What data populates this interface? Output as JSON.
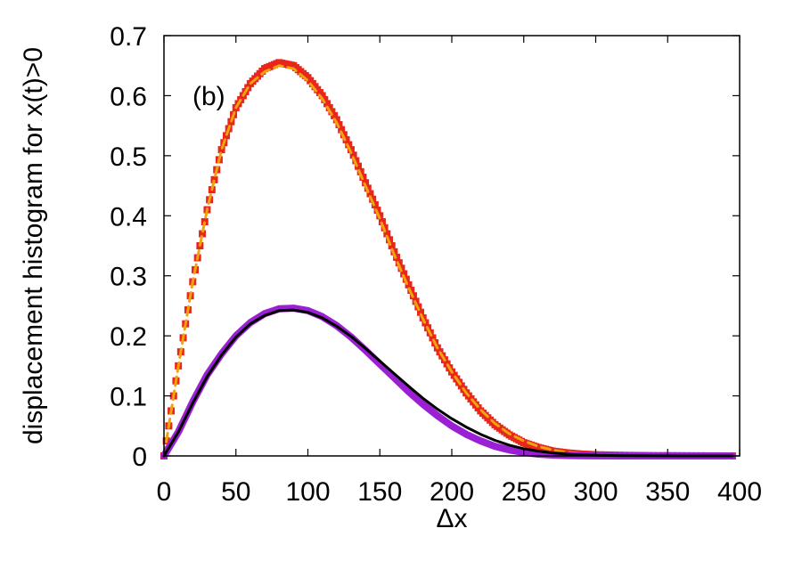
{
  "chart_data": {
    "type": "scatter",
    "title": "",
    "xlabel": "Δx",
    "ylabel": "displacement histogram for x(t)>0",
    "xlim": [
      0,
      400
    ],
    "ylim": [
      0,
      0.7
    ],
    "xticks": [
      "0",
      "50",
      "100",
      "150",
      "200",
      "250",
      "300",
      "350",
      "400"
    ],
    "yticks": [
      "0",
      "0.1",
      "0.2",
      "0.3",
      "0.4",
      "0.5",
      "0.6",
      "0.7"
    ],
    "grid": false,
    "legend": "none",
    "annotation": "(b)",
    "series": [
      {
        "style": "markers",
        "color": "#e8261c",
        "x": [
          0,
          10,
          20,
          30,
          40,
          50,
          60,
          70,
          80,
          90,
          100,
          110,
          120,
          130,
          140,
          150,
          160,
          170,
          180,
          190,
          200,
          210,
          220,
          230,
          240,
          250,
          260,
          270,
          280,
          290,
          300,
          320,
          340,
          360,
          380,
          395
        ],
        "y": [
          0,
          0.15,
          0.29,
          0.41,
          0.51,
          0.58,
          0.62,
          0.645,
          0.655,
          0.65,
          0.63,
          0.6,
          0.56,
          0.51,
          0.455,
          0.4,
          0.34,
          0.285,
          0.23,
          0.18,
          0.14,
          0.105,
          0.075,
          0.052,
          0.035,
          0.022,
          0.014,
          0.008,
          0.005,
          0.003,
          0.002,
          0.001,
          0.0005,
          0.0003,
          0.0001,
          0
        ]
      },
      {
        "style": "dashed-line",
        "color": "#f0a30a",
        "x": [
          0,
          10,
          20,
          30,
          40,
          50,
          60,
          70,
          80,
          90,
          100,
          110,
          120,
          130,
          140,
          150,
          160,
          170,
          180,
          190,
          200,
          210,
          220,
          230,
          240,
          250,
          260,
          270,
          280,
          290,
          300,
          320,
          340,
          360,
          380,
          395
        ],
        "y": [
          0,
          0.15,
          0.29,
          0.41,
          0.51,
          0.58,
          0.62,
          0.64,
          0.65,
          0.645,
          0.625,
          0.595,
          0.555,
          0.505,
          0.45,
          0.395,
          0.335,
          0.28,
          0.228,
          0.18,
          0.14,
          0.105,
          0.077,
          0.054,
          0.037,
          0.025,
          0.016,
          0.01,
          0.006,
          0.004,
          0.002,
          0.001,
          0.0005,
          0.0002,
          0.0001,
          0
        ]
      },
      {
        "style": "thick-line",
        "color": "#9b1fd3",
        "x": [
          0,
          10,
          20,
          30,
          40,
          50,
          60,
          70,
          80,
          90,
          100,
          110,
          120,
          130,
          140,
          150,
          160,
          170,
          180,
          190,
          200,
          210,
          220,
          230,
          240,
          250,
          260,
          270,
          280,
          290,
          300,
          320,
          340,
          360,
          380,
          395
        ],
        "y": [
          0,
          0.04,
          0.09,
          0.135,
          0.17,
          0.2,
          0.222,
          0.237,
          0.245,
          0.246,
          0.242,
          0.232,
          0.217,
          0.198,
          0.176,
          0.153,
          0.13,
          0.107,
          0.086,
          0.067,
          0.05,
          0.036,
          0.025,
          0.016,
          0.01,
          0.006,
          0.003,
          0.0015,
          0.0007,
          0.0003,
          0.0001,
          0,
          0,
          0,
          0,
          0
        ]
      },
      {
        "style": "line",
        "color": "#000000",
        "x": [
          0,
          10,
          20,
          30,
          40,
          50,
          60,
          70,
          80,
          90,
          100,
          110,
          120,
          130,
          140,
          150,
          160,
          170,
          180,
          190,
          200,
          210,
          220,
          230,
          240,
          250,
          260,
          270,
          280,
          290,
          300,
          320,
          340,
          360,
          380,
          395
        ],
        "y": [
          0,
          0.04,
          0.088,
          0.132,
          0.168,
          0.198,
          0.22,
          0.234,
          0.242,
          0.243,
          0.239,
          0.23,
          0.216,
          0.199,
          0.179,
          0.158,
          0.137,
          0.116,
          0.096,
          0.078,
          0.062,
          0.048,
          0.036,
          0.026,
          0.018,
          0.012,
          0.008,
          0.005,
          0.003,
          0.002,
          0.001,
          0.0004,
          0.0001,
          0,
          0,
          0
        ]
      }
    ]
  }
}
